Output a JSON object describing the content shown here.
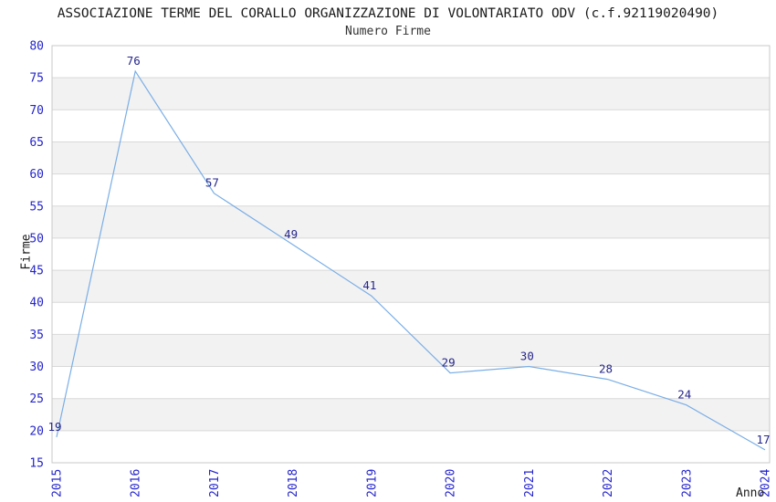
{
  "chart_data": {
    "type": "line",
    "title": "ASSOCIAZIONE TERME DEL CORALLO ORGANIZZAZIONE DI VOLONTARIATO ODV (c.f.92119020490)",
    "subtitle": "Numero Firme",
    "xlabel": "Anno",
    "ylabel": "Firme",
    "categories": [
      "2015",
      "2016",
      "2017",
      "2018",
      "2019",
      "2020",
      "2021",
      "2022",
      "2023",
      "2024"
    ],
    "series": [
      {
        "name": "Numero Firme",
        "values": [
          19,
          76,
          57,
          49,
          41,
          29,
          30,
          28,
          24,
          17
        ]
      }
    ],
    "data_labels": [
      "19",
      "76",
      "57",
      "49",
      "41",
      "29",
      "30",
      "28",
      "24",
      "17"
    ],
    "ylim": [
      15,
      80
    ],
    "ytick_step": 5,
    "yticks": [
      15,
      20,
      25,
      30,
      35,
      40,
      45,
      50,
      55,
      60,
      65,
      70,
      75,
      80
    ],
    "grid": true,
    "alternating_bands": true,
    "legend": "none",
    "colors": {
      "line": "#7aaee6",
      "data_label": "#26268c",
      "tick_label": "#2424cc",
      "band": "#f2f2f2",
      "gridline": "#d9d9d9",
      "frame": "#c8c8c8",
      "plot_background": "#ffffff",
      "title_text": "#1a1a1a"
    }
  }
}
